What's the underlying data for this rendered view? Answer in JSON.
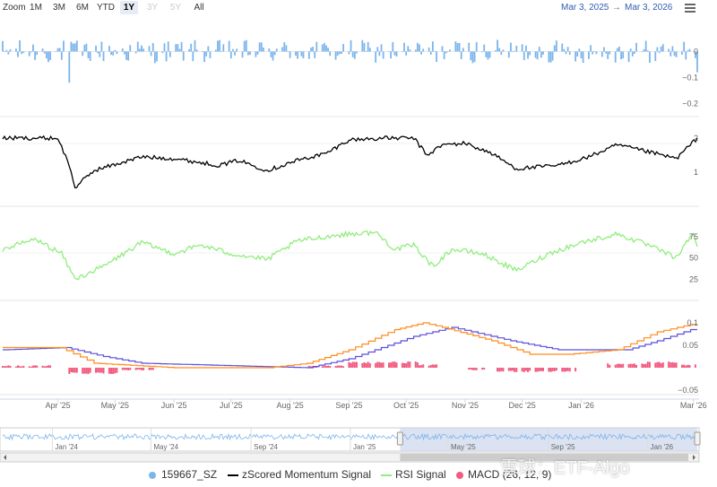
{
  "toolbar": {
    "zoom_label": "Zoom",
    "ranges": [
      {
        "label": "1M",
        "state": "normal"
      },
      {
        "label": "3M",
        "state": "normal"
      },
      {
        "label": "6M",
        "state": "normal"
      },
      {
        "label": "YTD",
        "state": "normal"
      },
      {
        "label": "1Y",
        "state": "active"
      },
      {
        "label": "3Y",
        "state": "disabled"
      },
      {
        "label": "5Y",
        "state": "disabled"
      },
      {
        "label": "All",
        "state": "normal"
      }
    ],
    "date_from": "Mar 3, 2025",
    "date_arrow": "→",
    "date_to": "Mar 3, 2026"
  },
  "colors": {
    "returns": "#7cb5ec",
    "momentum": "#000000",
    "rsi": "#90ed7d",
    "macd": "#f15c80",
    "macd_line": "#ff8c1a",
    "signal_line": "#5b4fd9",
    "navigator_bg": "#ccd6eb"
  },
  "chart_data": [
    {
      "type": "bar",
      "title": "",
      "series": [
        {
          "name": "159667_SZ"
        }
      ],
      "ylim": [
        -0.25,
        0.06
      ],
      "yticks": [
        "0",
        "−0.1",
        "−0.2"
      ],
      "approx": {
        "typical_range": [
          -0.05,
          0.05
        ],
        "min": -0.12,
        "min_date": "Apr 7 2025",
        "last": -0.08
      }
    },
    {
      "type": "line",
      "series": [
        {
          "name": "zScored Momentum Signal"
        }
      ],
      "ylim": [
        0,
        2.5
      ],
      "yticks": [
        "2",
        "1"
      ],
      "keypoints": [
        [
          "Mar 3 2025",
          2.0
        ],
        [
          "Apr 1 2025",
          2.0
        ],
        [
          "Apr 7 2025",
          1.2
        ],
        [
          "Apr 10 2025",
          0.55
        ],
        [
          "Apr 20 2025",
          1.05
        ],
        [
          "May 15 2025",
          1.45
        ],
        [
          "Jun 1 2025",
          1.4
        ],
        [
          "Jun 25 2025",
          1.2
        ],
        [
          "Jul 5 2025",
          1.35
        ],
        [
          "Jul 20 2025",
          1.05
        ],
        [
          "Aug 5 2025",
          1.35
        ],
        [
          "Aug 20 2025",
          1.55
        ],
        [
          "Sep 1 2025",
          1.95
        ],
        [
          "Sep 20 2025",
          2.0
        ],
        [
          "Oct 5 2025",
          2.0
        ],
        [
          "Oct 12 2025",
          1.5
        ],
        [
          "Oct 20 2025",
          1.8
        ],
        [
          "Nov 1 2025",
          1.85
        ],
        [
          "Nov 15 2025",
          1.55
        ],
        [
          "Nov 28 2025",
          1.1
        ],
        [
          "Dec 20 2025",
          1.2
        ],
        [
          "Jan 5 2026",
          1.45
        ],
        [
          "Jan 20 2026",
          1.8
        ],
        [
          "Feb 5 2026",
          1.6
        ],
        [
          "Feb 20 2026",
          1.4
        ],
        [
          "Mar 3 2026",
          2.0
        ]
      ]
    },
    {
      "type": "line",
      "series": [
        {
          "name": "RSI Signal"
        }
      ],
      "ylim": [
        0,
        100
      ],
      "yticks": [
        "75",
        "50",
        "25"
      ],
      "keypoints": [
        [
          "Mar 3 2025",
          60
        ],
        [
          "Mar 20 2025",
          72
        ],
        [
          "Apr 3 2025",
          55
        ],
        [
          "Apr 10 2025",
          25
        ],
        [
          "Apr 25 2025",
          40
        ],
        [
          "May 15 2025",
          68
        ],
        [
          "Jun 1 2025",
          55
        ],
        [
          "Jun 15 2025",
          65
        ],
        [
          "Jul 1 2025",
          55
        ],
        [
          "Jul 20 2025",
          48
        ],
        [
          "Aug 5 2025",
          70
        ],
        [
          "Aug 20 2025",
          75
        ],
        [
          "Sep 1 2025",
          78
        ],
        [
          "Sep 15 2025",
          80
        ],
        [
          "Sep 25 2025",
          60
        ],
        [
          "Oct 5 2025",
          65
        ],
        [
          "Oct 15 2025",
          40
        ],
        [
          "Oct 25 2025",
          60
        ],
        [
          "Nov 10 2025",
          55
        ],
        [
          "Nov 28 2025",
          35
        ],
        [
          "Dec 15 2025",
          55
        ],
        [
          "Jan 1 2026",
          68
        ],
        [
          "Jan 20 2026",
          78
        ],
        [
          "Feb 5 2026",
          65
        ],
        [
          "Feb 20 2026",
          50
        ],
        [
          "Mar 1 2026",
          80
        ],
        [
          "Mar 3 2026",
          63
        ]
      ]
    },
    {
      "type": "bar",
      "series": [
        {
          "name": "MACD (26, 12, 9)"
        },
        {
          "name": "",
          "role": "macd line"
        },
        {
          "name": "",
          "role": "signal line"
        }
      ],
      "ylim": [
        -0.06,
        0.12
      ],
      "yticks": [
        "0.1",
        "0.05",
        "−0.05"
      ],
      "approx": {
        "histogram_range": [
          -0.02,
          0.02
        ],
        "line_max": 0.1
      }
    }
  ],
  "xaxis": {
    "ticks": [
      "Apr '25",
      "May '25",
      "Jun '25",
      "Jul '25",
      "Aug '25",
      "Sep '25",
      "Oct '25",
      "Nov '25",
      "Dec '25",
      "Jan '26",
      "Mar '26"
    ]
  },
  "navigator": {
    "ticks": [
      "Jan '24",
      "May '24",
      "Sep '24",
      "Jan '25",
      "May '25",
      "Sep '25",
      "Jan '26"
    ]
  },
  "legend": [
    {
      "name": "159667_SZ",
      "marker": "dot",
      "color": "#7cb5ec"
    },
    {
      "name": "zScored Momentum Signal",
      "marker": "line",
      "color": "#000000"
    },
    {
      "name": "RSI Signal",
      "marker": "line",
      "color": "#90ed7d"
    },
    {
      "name": "MACD (26, 12, 9)",
      "marker": "dot",
      "color": "#f15c80"
    }
  ],
  "watermark": "雪球：ETF-Algo"
}
